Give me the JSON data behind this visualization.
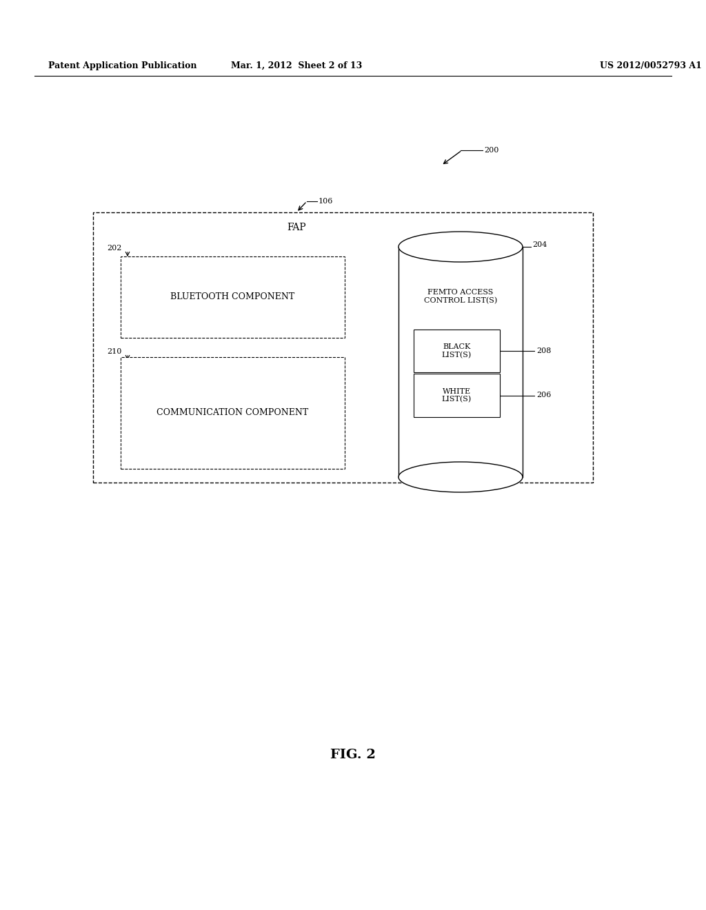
{
  "bg_color": "#ffffff",
  "header_left": "Patent Application Publication",
  "header_mid": "Mar. 1, 2012  Sheet 2 of 13",
  "header_right": "US 2012/0052793 A1",
  "fig_label": "FIG. 2",
  "ref_200": "200",
  "ref_106": "106",
  "ref_fap": "FAP",
  "ref_202": "202",
  "ref_204": "204",
  "ref_206": "206",
  "ref_208": "208",
  "ref_210": "210",
  "label_bluetooth": "BLUETOOTH COMPONENT",
  "label_comm": "COMMUNICATION COMPONENT",
  "label_femto": "FEMTO ACCESS\nCONTROL LIST(S)",
  "label_black": "BLACK\nLIST(S)",
  "label_white": "WHITE\nLIST(S)"
}
